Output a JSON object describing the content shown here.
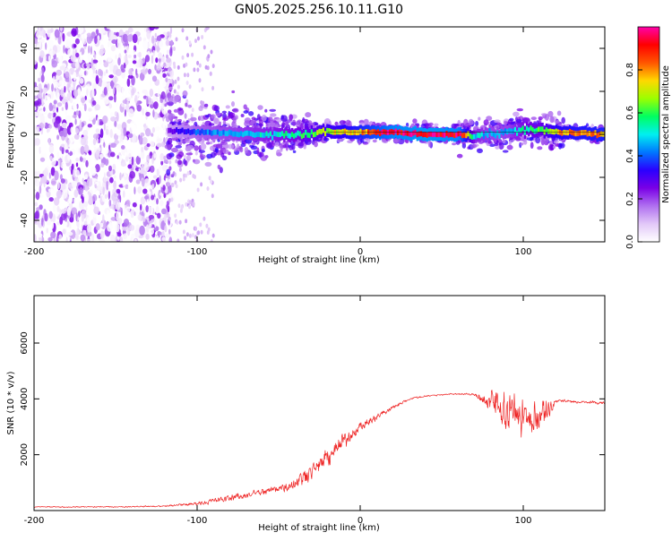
{
  "page_title": "GN05.2025.256.10.11.G10",
  "chart_data": [
    {
      "id": "spectrogram",
      "type": "heatmap",
      "title": "GN05.2025.256.10.11.G10",
      "xlabel": "Height of straight line (km)",
      "ylabel": "Frequency (Hz)",
      "xlim": [
        -200,
        150
      ],
      "ylim": [
        -50,
        50
      ],
      "xticks": [
        -200,
        -100,
        0,
        100
      ],
      "yticks": [
        -40,
        -20,
        0,
        20,
        40
      ],
      "colorbar": {
        "label": "Normalized spectral amplitude",
        "range": [
          0,
          1
        ],
        "ticks": [
          "0.0",
          "0.2",
          "0.4",
          "0.6",
          "0.8"
        ],
        "colormap": [
          "#ffffff",
          "#e2c8f8",
          "#b070f0",
          "#7a00e6",
          "#2a00ff",
          "#0077ff",
          "#00f0f0",
          "#00ff60",
          "#9cff00",
          "#ffd800",
          "#ff5500",
          "#ff0000",
          "#ff00aa"
        ]
      },
      "ridge": {
        "x": [
          -120,
          -100,
          -80,
          -60,
          -40,
          -20,
          0,
          20,
          40,
          60,
          70,
          80,
          90,
          100,
          110,
          120,
          150
        ],
        "frequency": [
          2,
          1,
          0.5,
          0,
          0,
          1,
          1,
          1,
          0,
          0,
          -1,
          0,
          1,
          2,
          2,
          1,
          0
        ],
        "amplitude": [
          0.25,
          0.4,
          0.45,
          0.5,
          0.55,
          0.7,
          0.8,
          0.95,
          0.98,
          0.95,
          0.5,
          0.45,
          0.45,
          0.55,
          0.6,
          0.75,
          0.8
        ]
      },
      "noise_region": {
        "x": [
          -200,
          -115
        ],
        "frequency": [
          -50,
          50
        ]
      }
    },
    {
      "id": "snr",
      "type": "line",
      "xlabel": "Height of straight line (km)",
      "ylabel": "SNR (10 * v/v)",
      "xlim": [
        -200,
        150
      ],
      "ylim": [
        0,
        7700
      ],
      "xticks": [
        -200,
        -100,
        0,
        100
      ],
      "yticks": [
        2000,
        4000,
        6000
      ],
      "series": [
        {
          "name": "SNR",
          "color": "#ee2222",
          "envelope": {
            "x": [
              -200,
              -150,
              -120,
              -100,
              -80,
              -60,
              -50,
              -40,
              -30,
              -20,
              -10,
              0,
              10,
              20,
              30,
              40,
              50,
              60,
              70,
              75,
              80,
              85,
              90,
              95,
              100,
              105,
              110,
              115,
              120,
              130,
              140,
              150
            ],
            "mean": [
              130,
              130,
              160,
              250,
              450,
              650,
              800,
              1000,
              1400,
              1900,
              2500,
              3000,
              3350,
              3700,
              4000,
              4100,
              4150,
              4180,
              4150,
              4000,
              3800,
              3800,
              3600,
              3500,
              3300,
              3300,
              3400,
              3500,
              3950,
              3900,
              3880,
              3850
            ],
            "spread": [
              60,
              70,
              80,
              200,
              400,
              450,
              600,
              700,
              900,
              1000,
              900,
              500,
              400,
              250,
              150,
              100,
              90,
              90,
              110,
              700,
              1500,
              2300,
              2200,
              2300,
              2100,
              1900,
              1900,
              1600,
              200,
              180,
              170,
              150
            ]
          }
        }
      ]
    }
  ]
}
